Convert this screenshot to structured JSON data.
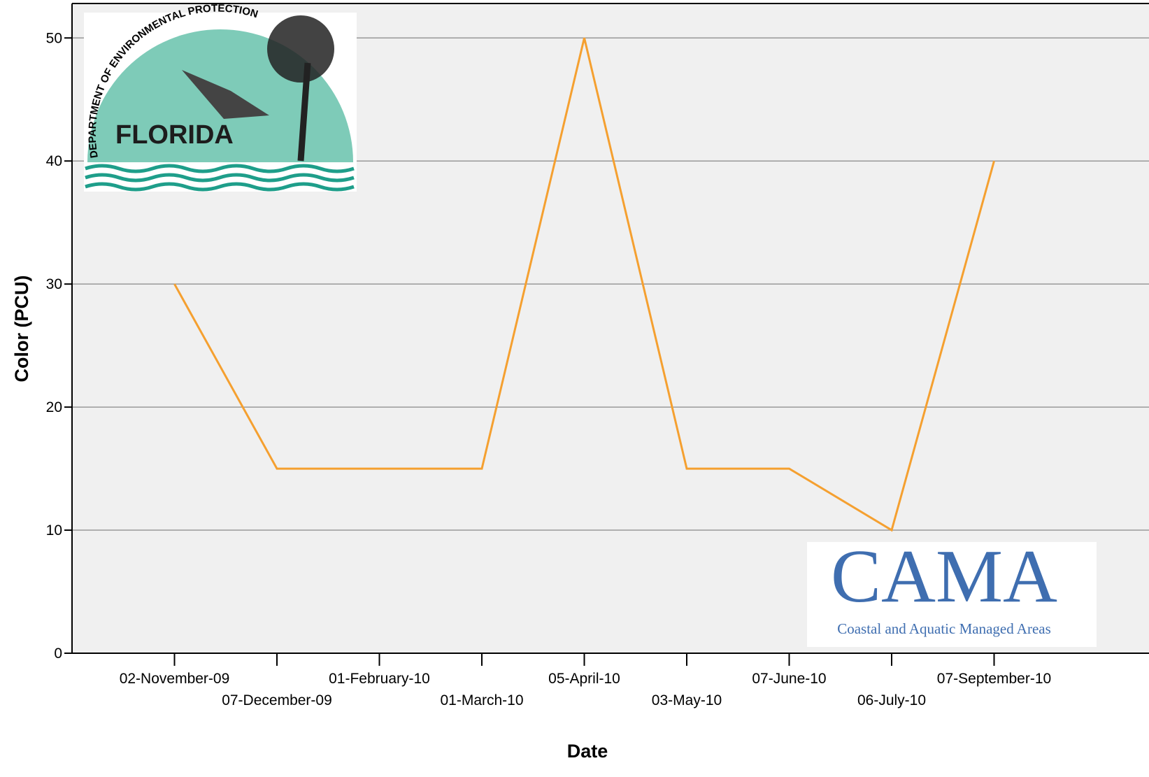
{
  "chart_data": {
    "type": "line",
    "x_label": "Date",
    "y_label": "Color (PCU)",
    "categories": [
      "02-November-09",
      "07-December-09",
      "01-February-10",
      "01-March-10",
      "05-April-10",
      "03-May-10",
      "07-June-10",
      "06-July-10",
      "07-September-10"
    ],
    "values": [
      30,
      15,
      15,
      15,
      50,
      15,
      15,
      10,
      40
    ],
    "color": "#f5a030",
    "ylim": [
      0,
      52.8
    ],
    "yticks": [
      0,
      10,
      20,
      30,
      40,
      50
    ],
    "grid": true,
    "logos": {
      "fdep_ring": "DEPARTMENT OF ENVIRONMENTAL PROTECTION",
      "fdep_name": "FLORIDA",
      "cama_name": "CAMA",
      "cama_full": "Coastal and Aquatic Managed Areas"
    }
  }
}
